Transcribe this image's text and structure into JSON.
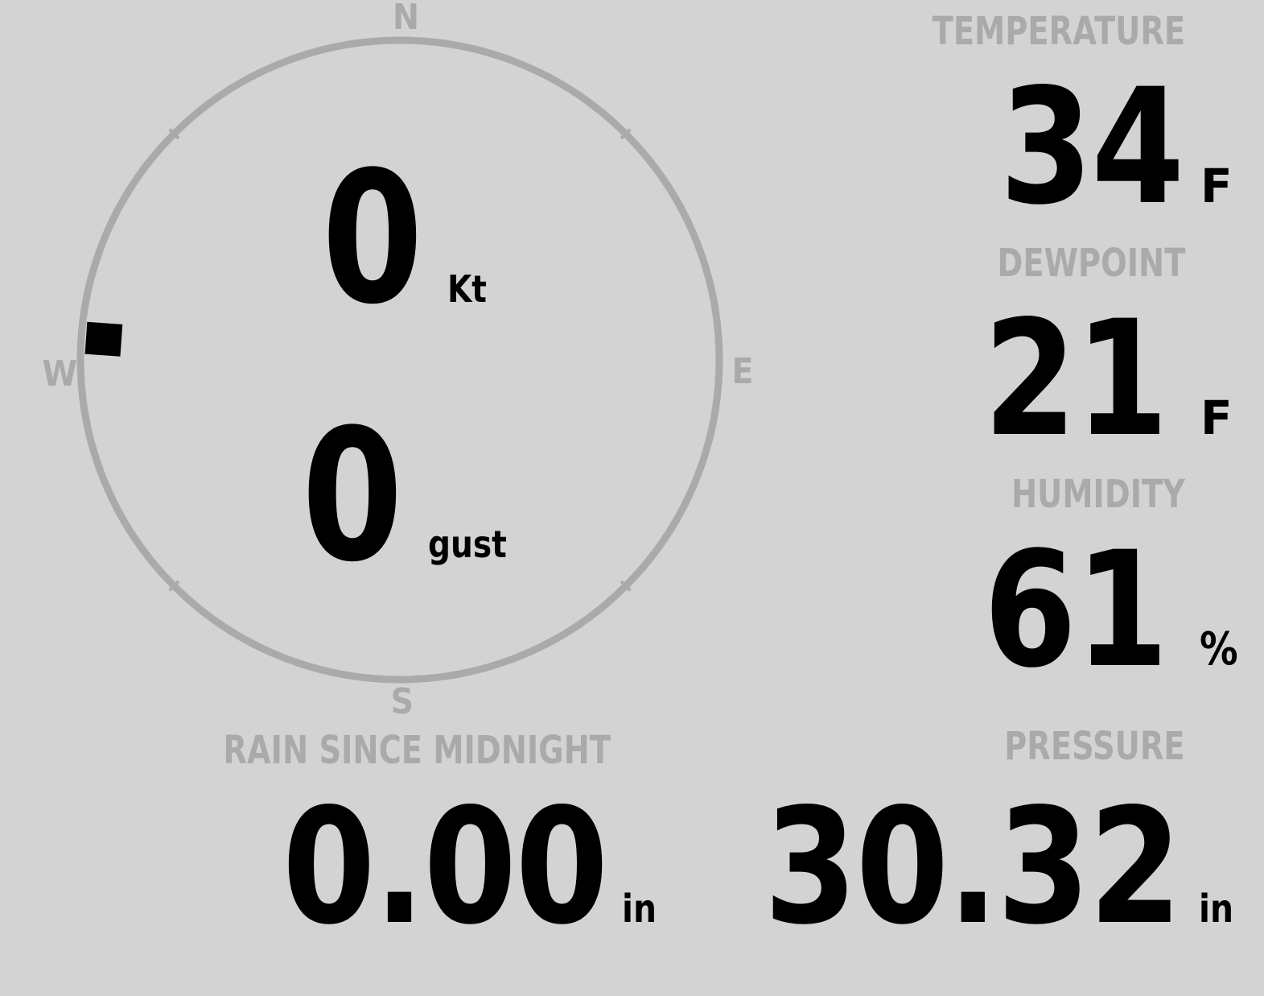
{
  "wind": {
    "compass": {
      "north": "N",
      "south": "S",
      "east": "E",
      "west": "W"
    },
    "direction_deg": 274,
    "speed": "0",
    "speed_unit": "Kt",
    "gust": "0",
    "gust_unit": "gust"
  },
  "temperature": {
    "label": "TEMPERATURE",
    "value": "34",
    "unit": "F"
  },
  "dewpoint": {
    "label": "DEWPOINT",
    "value": "21",
    "unit": "F"
  },
  "humidity": {
    "label": "HUMIDITY",
    "value": "61",
    "unit": "%"
  },
  "rain": {
    "label": "RAIN SINCE MIDNIGHT",
    "value": "0.00",
    "unit": "in"
  },
  "pressure": {
    "label": "PRESSURE",
    "value": "30.32",
    "unit": "in"
  },
  "colors": {
    "background": "#d3d3d3",
    "label": "#aaaaaa",
    "value": "#000000"
  }
}
